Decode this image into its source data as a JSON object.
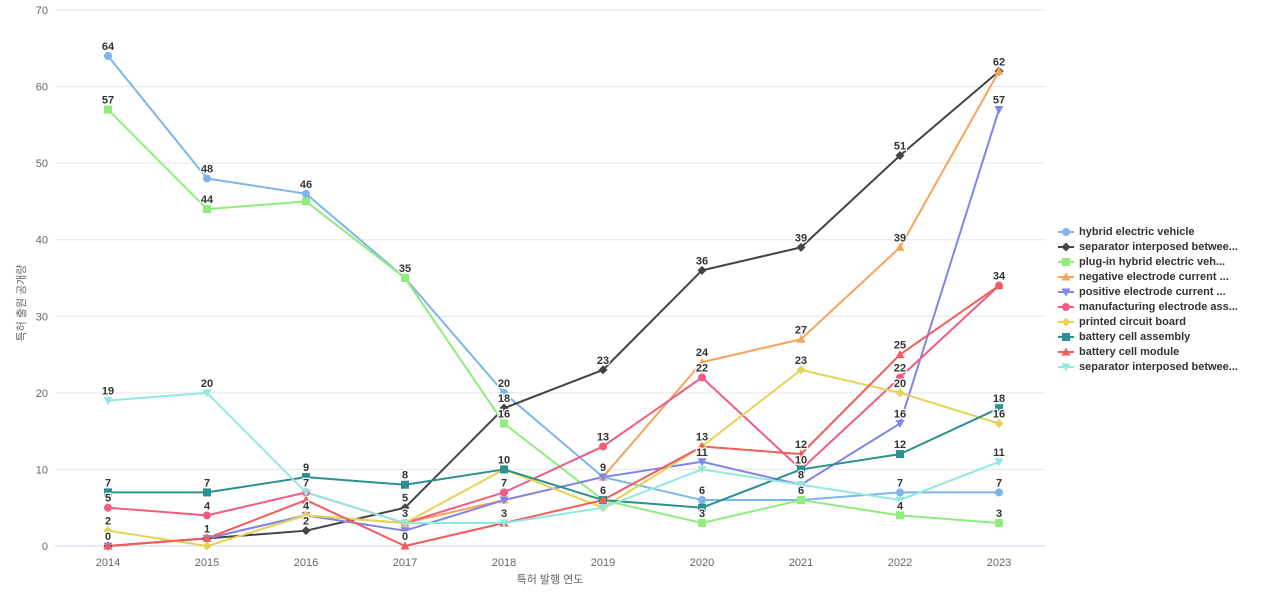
{
  "chart_data": {
    "type": "line",
    "title": "",
    "xlabel": "특허 발행 연도",
    "ylabel": "특허 출원 공개량",
    "x": [
      2014,
      2015,
      2016,
      2017,
      2018,
      2019,
      2020,
      2021,
      2022,
      2023
    ],
    "ylim": [
      0,
      70
    ],
    "yticks": [
      0,
      10,
      20,
      30,
      40,
      50,
      60,
      70
    ],
    "grid": "horizontal-only",
    "legend_position": "right",
    "background_color": "#ffffff",
    "gridline_color": "#e6e6e6",
    "axis_line_color": "#ccd6eb",
    "tick_label_color": "#666666",
    "data_label_color": "#333333",
    "series": [
      {
        "name": "hybrid electric vehicle",
        "color": "#7cb5ec",
        "marker": "circle",
        "values": [
          64,
          48,
          46,
          35,
          20,
          9,
          6,
          6,
          7,
          7
        ]
      },
      {
        "name": "separator interposed betwee...",
        "color": "#434348",
        "marker": "diamond",
        "values": [
          0,
          1,
          2,
          5,
          18,
          23,
          36,
          39,
          51,
          62
        ]
      },
      {
        "name": "plug-in hybrid electric veh...",
        "color": "#90ed7d",
        "marker": "square",
        "values": [
          57,
          44,
          45,
          35,
          16,
          6,
          3,
          6,
          4,
          3
        ]
      },
      {
        "name": "negative electrode current ...",
        "color": "#f7a35c",
        "marker": "triangle",
        "values": [
          0,
          1,
          4,
          3,
          6,
          9,
          24,
          27,
          39,
          62
        ]
      },
      {
        "name": "positive electrode current ...",
        "color": "#8085e9",
        "marker": "triangle-down",
        "values": [
          0,
          1,
          4,
          2,
          6,
          9,
          11,
          8,
          16,
          57
        ]
      },
      {
        "name": "manufacturing electrode ass...",
        "color": "#f15c80",
        "marker": "circle",
        "values": [
          5,
          4,
          7,
          3,
          7,
          13,
          22,
          10,
          22,
          34
        ]
      },
      {
        "name": "printed circuit board",
        "color": "#e4d354",
        "marker": "diamond",
        "values": [
          2,
          0,
          4,
          3,
          10,
          5,
          13,
          23,
          20,
          16
        ]
      },
      {
        "name": "battery cell assembly",
        "color": "#2b908f",
        "marker": "square",
        "values": [
          7,
          7,
          9,
          8,
          10,
          6,
          5,
          10,
          12,
          18
        ]
      },
      {
        "name": "battery cell module",
        "color": "#f45b5b",
        "marker": "triangle",
        "values": [
          0,
          1,
          6,
          0,
          3,
          6,
          13,
          12,
          25,
          34
        ]
      },
      {
        "name": "separator interposed betwee...",
        "color": "#91e8e1",
        "marker": "triangle-down",
        "values": [
          19,
          20,
          7,
          3,
          3,
          5,
          10,
          8,
          6,
          11
        ]
      }
    ]
  }
}
